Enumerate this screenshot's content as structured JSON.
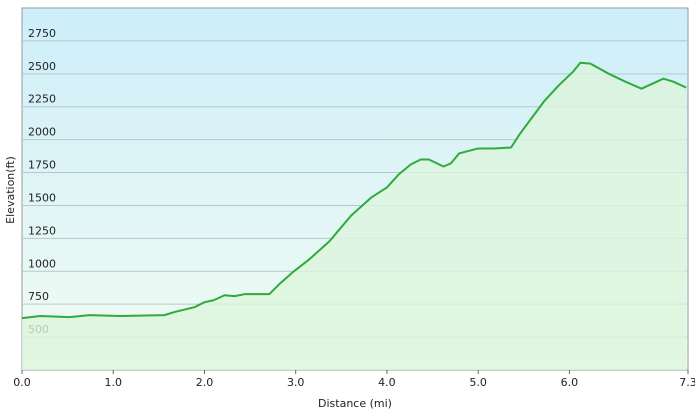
{
  "chart_data": {
    "type": "area",
    "ylabel": "Elevation(ft)",
    "xlabel": "Distance  (mi)",
    "x": [
      0,
      0.2,
      0.52,
      0.74,
      1.07,
      1.56,
      1.67,
      1.89,
      2.0,
      2.1,
      2.22,
      2.33,
      2.44,
      2.71,
      2.82,
      2.98,
      3.15,
      3.37,
      3.61,
      3.83,
      4.0,
      4.13,
      4.26,
      4.37,
      4.46,
      4.62,
      4.7,
      4.79,
      5.0,
      5.17,
      5.36,
      5.46,
      5.72,
      5.88,
      6.04,
      6.12,
      6.23,
      6.43,
      6.59,
      6.79,
      7.03,
      7.14,
      7.28
    ],
    "series": [
      {
        "color": "#2faa3c",
        "fill": "#dcf5dc",
        "values": [
          644,
          660,
          652,
          667,
          660,
          667,
          690,
          727,
          765,
          780,
          818,
          811,
          826,
          826,
          902,
          1000,
          1091,
          1228,
          1425,
          1561,
          1637,
          1736,
          1811,
          1849,
          1849,
          1796,
          1819,
          1895,
          1933,
          1933,
          1940,
          2046,
          2289,
          2410,
          2516,
          2584,
          2577,
          2501,
          2448,
          2387,
          2463,
          2440,
          2395
        ]
      }
    ],
    "xlim": [
      0,
      7.3
    ],
    "xticks": [
      {
        "value": 0,
        "label": "0.0"
      },
      {
        "value": 1,
        "label": "1.0"
      },
      {
        "value": 2,
        "label": "2.0"
      },
      {
        "value": 3,
        "label": "3.0"
      },
      {
        "value": 4,
        "label": "4.0"
      },
      {
        "value": 5,
        "label": "5.0"
      },
      {
        "value": 6,
        "label": "6.0"
      },
      {
        "value": 7.3,
        "label": "7.3"
      }
    ],
    "ylim": [
      250,
      3000
    ],
    "yticks": [
      500,
      750,
      1000,
      1250,
      1500,
      1750,
      2000,
      2250,
      2500,
      2750
    ],
    "grid": true
  }
}
